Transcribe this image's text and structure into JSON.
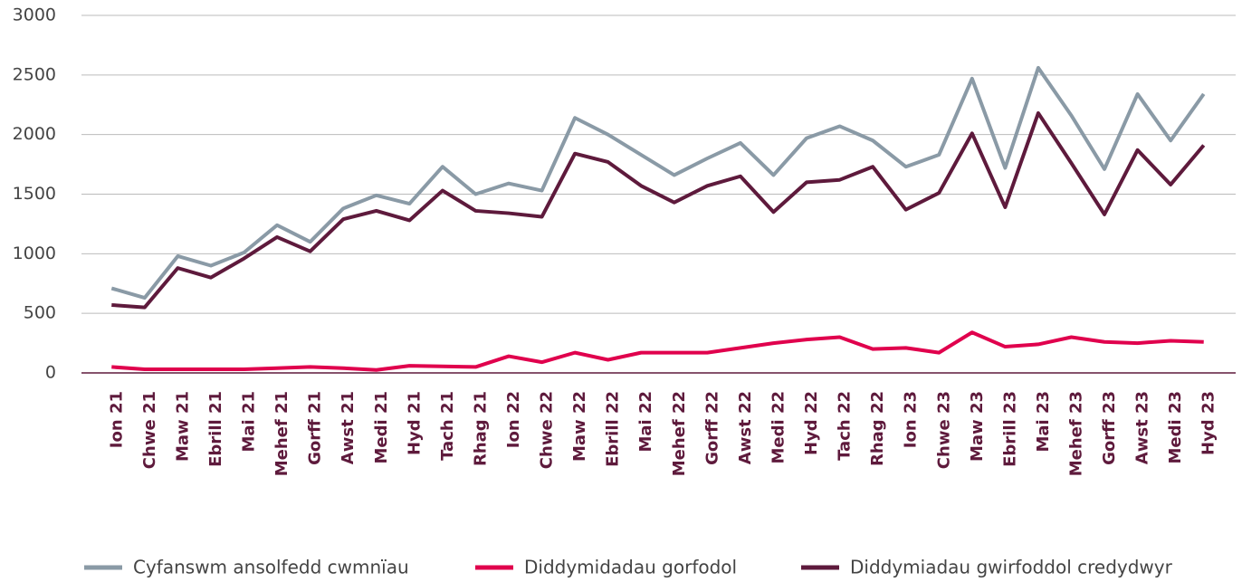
{
  "chart_data": {
    "type": "line",
    "categories": [
      "Ion 21",
      "Chwe 21",
      "Maw 21",
      "Ebrill 21",
      "Mai 21",
      "Mehef 21",
      "Gorff 21",
      "Awst 21",
      "Medi 21",
      "Hyd 21",
      "Tach 21",
      "Rhag 21",
      "Ion 22",
      "Chwe 22",
      "Maw 22",
      "Ebrill 22",
      "Mai 22",
      "Mehef 22",
      "Gorff 22",
      "Awst 22",
      "Medi 22",
      "Hyd 22",
      "Tach 22",
      "Rhag 22",
      "Ion 23",
      "Chwe 23",
      "Maw 23",
      "Ebrill 23",
      "Mai 23",
      "Mehef 23",
      "Gorff 23",
      "Awst 23",
      "Medi 23",
      "Hyd 23"
    ],
    "series": [
      {
        "name": "Cyfanswm ansolfedd cwmnïau",
        "color": "#8a9aa6",
        "values": [
          710,
          630,
          980,
          900,
          1010,
          1240,
          1100,
          1380,
          1490,
          1420,
          1730,
          1500,
          1590,
          1530,
          2140,
          2000,
          1830,
          1660,
          1800,
          1930,
          1660,
          1970,
          2070,
          1950,
          1730,
          1830,
          2470,
          1720,
          2560,
          2160,
          1710,
          2340,
          1950,
          2340
        ]
      },
      {
        "name": "Diddymidadau gorfodol",
        "color": "#e0004d",
        "values": [
          50,
          30,
          30,
          30,
          30,
          40,
          50,
          40,
          25,
          60,
          55,
          50,
          140,
          90,
          170,
          110,
          170,
          170,
          170,
          210,
          250,
          280,
          300,
          200,
          210,
          170,
          340,
          220,
          240,
          300,
          260,
          250,
          270,
          260
        ]
      },
      {
        "name": "Diddymiadau gwirfoddol credydwyr",
        "color": "#5e1a3c",
        "values": [
          570,
          550,
          880,
          800,
          960,
          1140,
          1020,
          1290,
          1360,
          1280,
          1530,
          1360,
          1340,
          1310,
          1840,
          1770,
          1570,
          1430,
          1570,
          1650,
          1350,
          1600,
          1620,
          1730,
          1370,
          1510,
          2010,
          1390,
          2180,
          1760,
          1330,
          1870,
          1580,
          1910
        ]
      }
    ],
    "ylim": [
      0,
      3000
    ],
    "yticks": [
      0,
      500,
      1000,
      1500,
      2000,
      2500,
      3000
    ],
    "grid": true,
    "legend": "bottom"
  }
}
